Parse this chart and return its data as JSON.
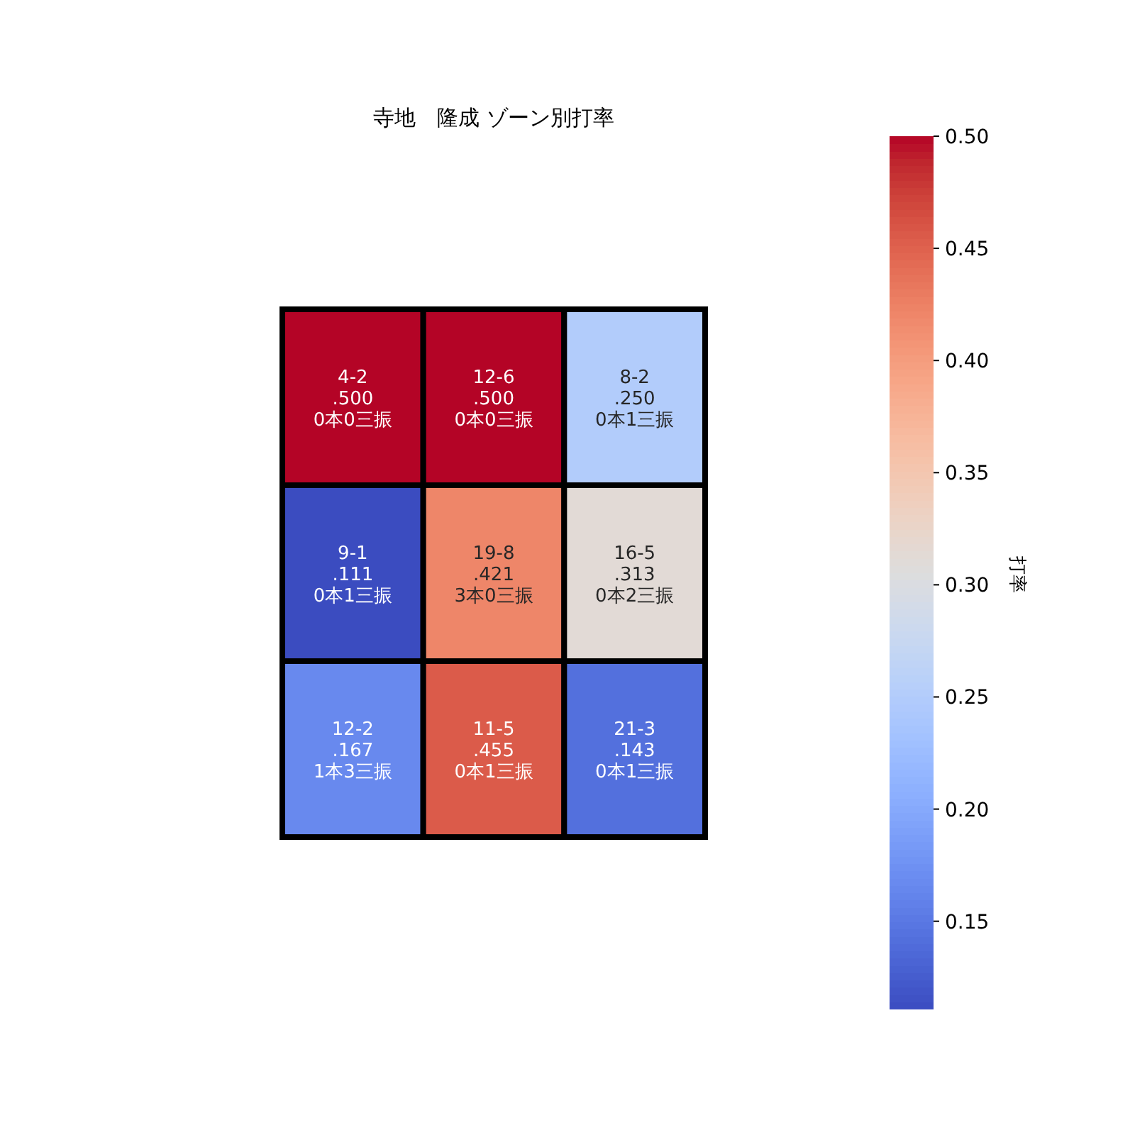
{
  "chart_data": {
    "type": "heatmap",
    "title": "寺地　隆成 ゾーン別打率",
    "clabel": "打率",
    "categories": [
      null,
      null,
      null
    ],
    "y_categories": [
      null,
      null,
      null
    ],
    "cells": [
      [
        0.5,
        0.5,
        0.25
      ],
      [
        0.111,
        0.421,
        0.313
      ],
      [
        0.167,
        0.455,
        0.143
      ]
    ],
    "cell_labels": [
      [
        "4-2\n.500\n0本0三振",
        "12-6\n.500\n0本0三振",
        "8-2\n.250\n0本1三振"
      ],
      [
        "9-1\n.111\n0本1三振",
        "19-8\n.421\n3本0三振",
        "16-5\n.313\n0本2三振"
      ],
      [
        "12-2\n.167\n1本3三振",
        "11-5\n.455\n0本1三振",
        "21-3\n.143\n0本1三振"
      ]
    ],
    "clim": [
      0.111,
      0.5
    ],
    "cticks": [
      {
        "value": 0.15,
        "label": "0.15"
      },
      {
        "value": 0.2,
        "label": "0.20"
      },
      {
        "value": 0.25,
        "label": "0.25"
      },
      {
        "value": 0.3,
        "label": "0.30"
      },
      {
        "value": 0.35,
        "label": "0.35"
      },
      {
        "value": 0.4,
        "label": "0.40"
      },
      {
        "value": 0.45,
        "label": "0.45"
      },
      {
        "value": 0.5,
        "label": "0.50"
      }
    ]
  }
}
